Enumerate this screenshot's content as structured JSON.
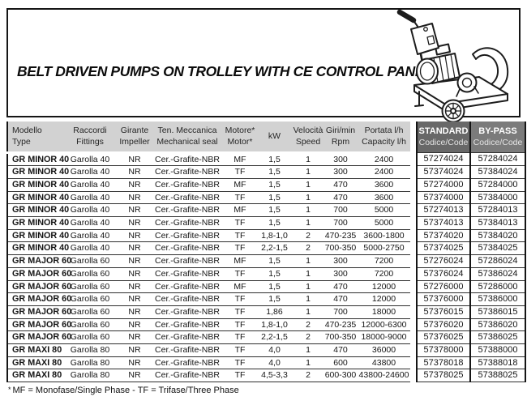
{
  "title": "BELT DRIVEN PUMPS ON TROLLEY WITH CE CONTROL PANEL",
  "illustration": "belt-driven-pump-on-trolley-line-drawing",
  "colors": {
    "header_bg": "#d2d2d2",
    "standard_bg": "#686868",
    "bypass_bg": "#7b7b7b"
  },
  "table": {
    "headers": {
      "modello": {
        "l1": "Modello",
        "l2": "Type"
      },
      "raccordi": {
        "l1": "Raccordi",
        "l2": "Fittings"
      },
      "girante": {
        "l1": "Girante",
        "l2": "Impeller"
      },
      "tenuta": {
        "l1": "Ten. Meccanica",
        "l2": "Mechanical seal"
      },
      "motore": {
        "l1": "Motore*",
        "l2": "Motor*"
      },
      "kw": {
        "l1": "kW",
        "l2": ""
      },
      "velocita": {
        "l1": "Velocità",
        "l2": "Speed"
      },
      "giri": {
        "l1": "Giri/min",
        "l2": "Rpm"
      },
      "portata": {
        "l1": "Portata l/h",
        "l2": "Capacity l/h"
      },
      "standard": {
        "l1": "STANDARD",
        "l2": "Codice/Code"
      },
      "bypass": {
        "l1": "BY-PASS",
        "l2": "Codice/Code"
      }
    },
    "rows": [
      [
        "GR MINOR 40",
        "Garolla 40",
        "NR",
        "Cer.-Grafite-NBR",
        "MF",
        "1,5",
        "1",
        "300",
        "2400",
        "57274024",
        "57284024"
      ],
      [
        "GR MINOR 40",
        "Garolla 40",
        "NR",
        "Cer.-Grafite-NBR",
        "TF",
        "1,5",
        "1",
        "300",
        "2400",
        "57374024",
        "57384024"
      ],
      [
        "GR MINOR 40",
        "Garolla 40",
        "NR",
        "Cer.-Grafite-NBR",
        "MF",
        "1,5",
        "1",
        "470",
        "3600",
        "57274000",
        "57284000"
      ],
      [
        "GR MINOR 40",
        "Garolla 40",
        "NR",
        "Cer.-Grafite-NBR",
        "TF",
        "1,5",
        "1",
        "470",
        "3600",
        "57374000",
        "57384000"
      ],
      [
        "GR MINOR 40",
        "Garolla 40",
        "NR",
        "Cer.-Grafite-NBR",
        "MF",
        "1,5",
        "1",
        "700",
        "5000",
        "57274013",
        "57284013"
      ],
      [
        "GR MINOR 40",
        "Garolla 40",
        "NR",
        "Cer.-Grafite-NBR",
        "TF",
        "1,5",
        "1",
        "700",
        "5000",
        "57374013",
        "57384013"
      ],
      [
        "GR MINOR 40",
        "Garolla 40",
        "NR",
        "Cer.-Grafite-NBR",
        "TF",
        "1,8-1,0",
        "2",
        "470-235",
        "3600-1800",
        "57374020",
        "57384020"
      ],
      [
        "GR MINOR 40",
        "Garolla 40",
        "NR",
        "Cer.-Grafite-NBR",
        "TF",
        "2,2-1,5",
        "2",
        "700-350",
        "5000-2750",
        "57374025",
        "57384025"
      ],
      [
        "GR MAJOR 60",
        "Garolla 60",
        "NR",
        "Cer.-Grafite-NBR",
        "MF",
        "1,5",
        "1",
        "300",
        "7200",
        "57276024",
        "57286024"
      ],
      [
        "GR MAJOR 60",
        "Garolla 60",
        "NR",
        "Cer.-Grafite-NBR",
        "TF",
        "1,5",
        "1",
        "300",
        "7200",
        "57376024",
        "57386024"
      ],
      [
        "GR MAJOR 60",
        "Garolla 60",
        "NR",
        "Cer.-Grafite-NBR",
        "MF",
        "1,5",
        "1",
        "470",
        "12000",
        "57276000",
        "57286000"
      ],
      [
        "GR MAJOR 60",
        "Garolla 60",
        "NR",
        "Cer.-Grafite-NBR",
        "TF",
        "1,5",
        "1",
        "470",
        "12000",
        "57376000",
        "57386000"
      ],
      [
        "GR MAJOR 60",
        "Garolla 60",
        "NR",
        "Cer.-Grafite-NBR",
        "TF",
        "1,86",
        "1",
        "700",
        "18000",
        "57376015",
        "57386015"
      ],
      [
        "GR MAJOR 60",
        "Garolla 60",
        "NR",
        "Cer.-Grafite-NBR",
        "TF",
        "1,8-1,0",
        "2",
        "470-235",
        "12000-6300",
        "57376020",
        "57386020"
      ],
      [
        "GR MAJOR 60",
        "Garolla 60",
        "NR",
        "Cer.-Grafite-NBR",
        "TF",
        "2,2-1,5",
        "2",
        "700-350",
        "18000-9000",
        "57376025",
        "57386025"
      ],
      [
        "GR MAXI 80",
        "Garolla 80",
        "NR",
        "Cer.-Grafite-NBR",
        "TF",
        "4,0",
        "1",
        "470",
        "36000",
        "57378000",
        "57388000"
      ],
      [
        "GR MAXI 80",
        "Garolla 80",
        "NR",
        "Cer.-Grafite-NBR",
        "TF",
        "4,0",
        "1",
        "600",
        "43800",
        "57378018",
        "57388018"
      ],
      [
        "GR MAXI 80",
        "Garolla 80",
        "NR",
        "Cer.-Grafite-NBR",
        "TF",
        "4,5-3,3",
        "2",
        "600-300",
        "43800-24600",
        "57378025",
        "57388025"
      ]
    ]
  },
  "footnote": {
    "marker": "*",
    "text": "MF = Monofase/Single Phase - TF = Trifase/Three Phase"
  }
}
